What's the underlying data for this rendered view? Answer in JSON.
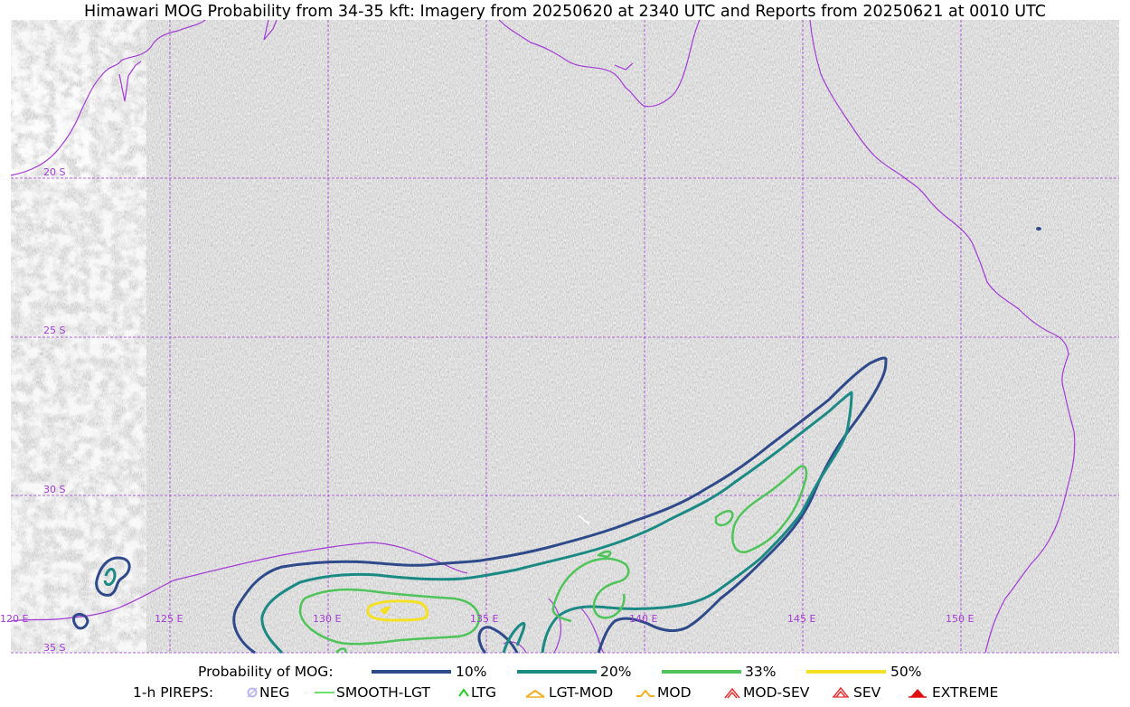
{
  "title": "Himawari MOG Probability from 34-35 kft: Imagery from 20250620 at 2340 UTC and Reports from 20250621 at 0010 UTC",
  "grid": {
    "lat_labels": [
      "20 S",
      "25 S",
      "30 S",
      "35 S"
    ],
    "lon_labels": [
      "120 E",
      "125 E",
      "130 E",
      "135 E",
      "140 E",
      "145 E",
      "150 E"
    ],
    "line_color": "#a23bd6"
  },
  "legend_probability": {
    "label": "Probability of MOG:",
    "items": [
      {
        "label": "10%",
        "color": "#2f4a8a"
      },
      {
        "label": "20%",
        "color": "#1b8a84"
      },
      {
        "label": "33%",
        "color": "#4fc45a"
      },
      {
        "label": "50%",
        "color": "#f5e124"
      }
    ]
  },
  "legend_pireps": {
    "label": "1-h PIREPS:",
    "items": [
      {
        "label": "NEG",
        "icon": "neg-icon",
        "color": "#b9b6f0"
      },
      {
        "label": "SMOOTH-LGT",
        "icon": "smooth-lgt-icon",
        "color": "#3fd33f"
      },
      {
        "label": "LTG",
        "icon": "ltg-icon",
        "color": "#22cc22"
      },
      {
        "label": "LGT-MOD",
        "icon": "lgt-mod-icon",
        "color": "#f0b020"
      },
      {
        "label": "MOD",
        "icon": "mod-icon",
        "color": "#f0b020"
      },
      {
        "label": "MOD-SEV",
        "icon": "mod-sev-icon",
        "color": "#e83030"
      },
      {
        "label": "SEV",
        "icon": "sev-icon",
        "color": "#e83030"
      },
      {
        "label": "EXTREME",
        "icon": "extreme-icon",
        "color": "#e01010"
      }
    ]
  }
}
